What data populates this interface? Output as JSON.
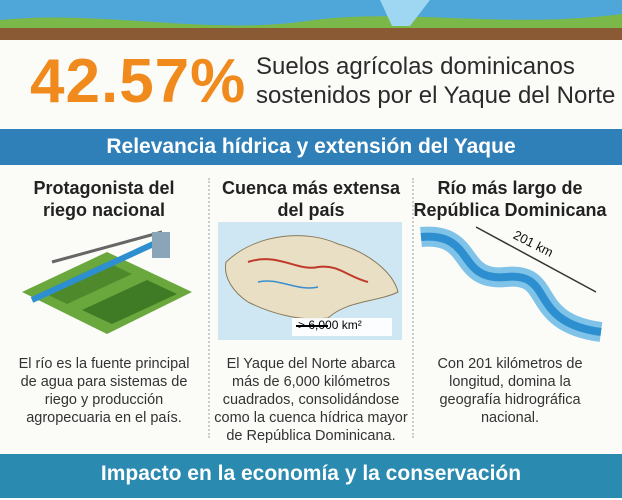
{
  "headline": {
    "stat": "42.57%",
    "text_lines": [
      "Suelos agrícolas dominicanos",
      "sostenidos por el Yaque del Norte"
    ]
  },
  "section_banner": "Relevancia hídrica y extensión del Yaque",
  "columns": [
    {
      "title_lines": [
        "Protagonista del",
        "riego nacional"
      ],
      "image_label": null,
      "body_lines": [
        "El río es la fuente principal",
        "de agua para sistemas de",
        "riego y producción",
        "agropecuaria en el país."
      ]
    },
    {
      "title_lines": [
        "Cuenca más extensa",
        "del país"
      ],
      "image_label": "> 6,000 km²",
      "body_lines": [
        "El Yaque del Norte abarca",
        "más de 6,000 kilómetros",
        "cuadrados, consolidándose",
        "como la cuenca hídrica mayor",
        "de República Dominicana."
      ]
    },
    {
      "title_lines": [
        "Río más largo de",
        "República Dominicana"
      ],
      "image_label": "201 km",
      "body_lines": [
        "Con 201 kilómetros de",
        "longitud, domina la",
        "geografía hidrográfica",
        "nacional."
      ]
    }
  ],
  "footer_banner": "Impacto en la economía y la conservación"
}
